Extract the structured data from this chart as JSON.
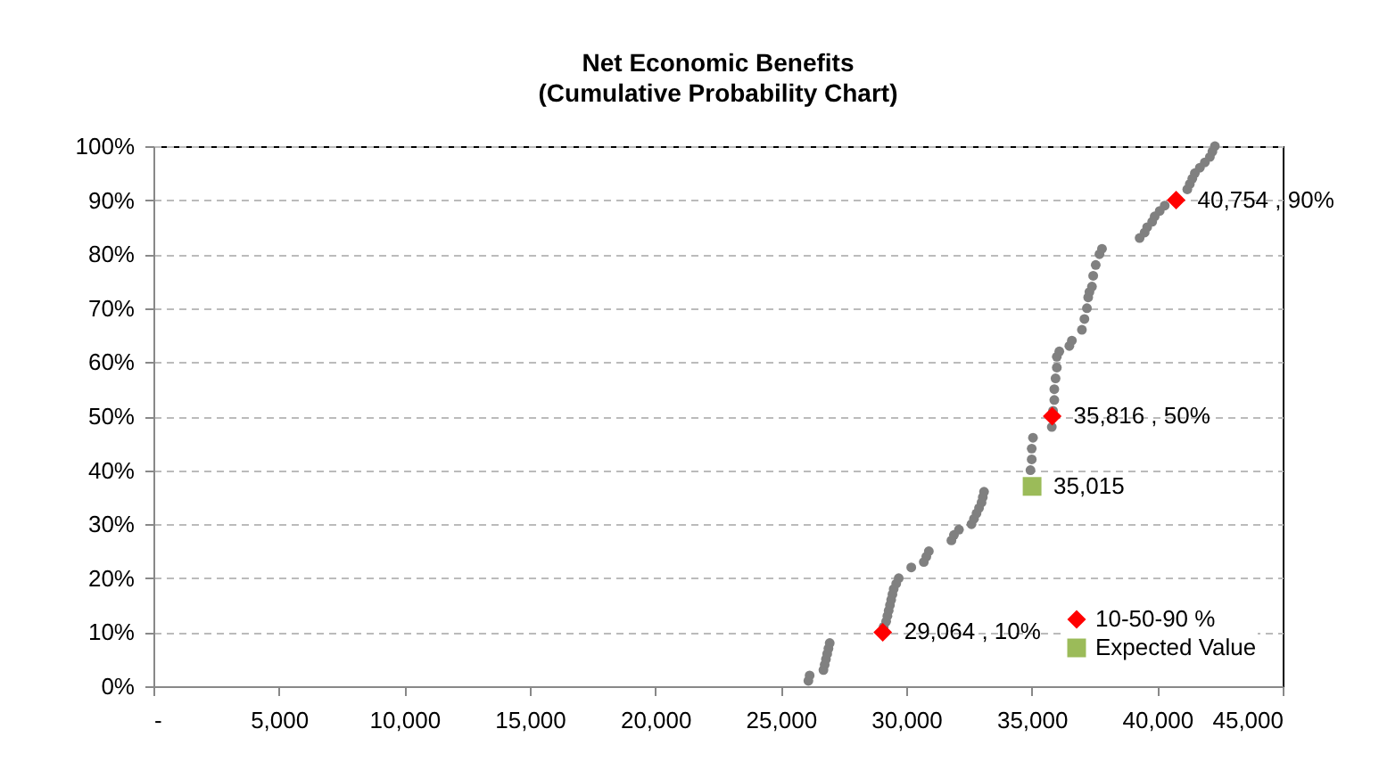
{
  "chart_data": {
    "type": "scatter",
    "title": "Net Economic Benefits",
    "subtitle": "(Cumulative Probability Chart)",
    "xlim": [
      0,
      45000
    ],
    "xticks": [
      {
        "value": 0,
        "label": "-"
      },
      {
        "value": 5000,
        "label": "5,000"
      },
      {
        "value": 10000,
        "label": "10,000"
      },
      {
        "value": 15000,
        "label": "15,000"
      },
      {
        "value": 20000,
        "label": "20,000"
      },
      {
        "value": 25000,
        "label": "25,000"
      },
      {
        "value": 30000,
        "label": "30,000"
      },
      {
        "value": 35000,
        "label": "35,000"
      },
      {
        "value": 40000,
        "label": "40,000"
      },
      {
        "value": 45000,
        "label": "45,000"
      }
    ],
    "ylim": [
      0,
      100
    ],
    "yticks": [
      {
        "value": 0,
        "label": "0%"
      },
      {
        "value": 10,
        "label": "10%"
      },
      {
        "value": 20,
        "label": "20%"
      },
      {
        "value": 30,
        "label": "30%"
      },
      {
        "value": 40,
        "label": "40%"
      },
      {
        "value": 50,
        "label": "50%"
      },
      {
        "value": 60,
        "label": "60%"
      },
      {
        "value": 70,
        "label": "70%"
      },
      {
        "value": 80,
        "label": "80%"
      },
      {
        "value": 90,
        "label": "90%"
      },
      {
        "value": 100,
        "label": "100%"
      }
    ],
    "grid": "y",
    "legend": "bottom right",
    "series": [
      {
        "color": "#808080",
        "marker": "circle",
        "x": [
          26100,
          26150,
          26700,
          26750,
          26800,
          26850,
          26900,
          26950,
          29100,
          29200,
          29250,
          29300,
          29350,
          29400,
          29450,
          29500,
          29600,
          29700,
          30200,
          30700,
          30800,
          30900,
          31800,
          31900,
          32100,
          32600,
          32700,
          32800,
          32900,
          33000,
          33050,
          33100,
          34950,
          35000,
          35000,
          35050,
          35800,
          35850,
          35900,
          35900,
          35950,
          36000,
          36000,
          36100,
          36500,
          36600,
          37000,
          37100,
          37200,
          37250,
          37300,
          37400,
          37450,
          37550,
          37700,
          37800,
          39300,
          39500,
          39600,
          39800,
          39900,
          40100,
          40300,
          41200,
          41300,
          41400,
          41500,
          41700,
          41900,
          42100,
          42200,
          42300
        ],
        "values": [
          1,
          2,
          3,
          4,
          5,
          6,
          7,
          8,
          11,
          12,
          13,
          14,
          15,
          16,
          17,
          18,
          19,
          20,
          22,
          23,
          24,
          25,
          27,
          28,
          29,
          30,
          31,
          32,
          33,
          34,
          35,
          36,
          40,
          42,
          44,
          46,
          48,
          51,
          53,
          55,
          57,
          59,
          61,
          62,
          63,
          64,
          66,
          68,
          70,
          72,
          73,
          74,
          76,
          78,
          80,
          81,
          83,
          84,
          85,
          86,
          87,
          88,
          89,
          92,
          93,
          94,
          95,
          96,
          97,
          98,
          99,
          100
        ]
      },
      {
        "name": "10-50-90 %",
        "color": "#ff0000",
        "marker": "diamond",
        "x": [
          29064,
          35816,
          40754
        ],
        "values": [
          10,
          50,
          90
        ],
        "value_labels": [
          "29,064 , 10%",
          "35,816 , 50%",
          "40,754 , 90%"
        ]
      },
      {
        "name": "Expected Value",
        "color": "#9bbb59",
        "marker": "square",
        "x": [
          35015
        ],
        "values": [
          37
        ]
      }
    ],
    "annotations": [
      {
        "text": "35,015",
        "x": 35015,
        "y": 37
      }
    ]
  }
}
